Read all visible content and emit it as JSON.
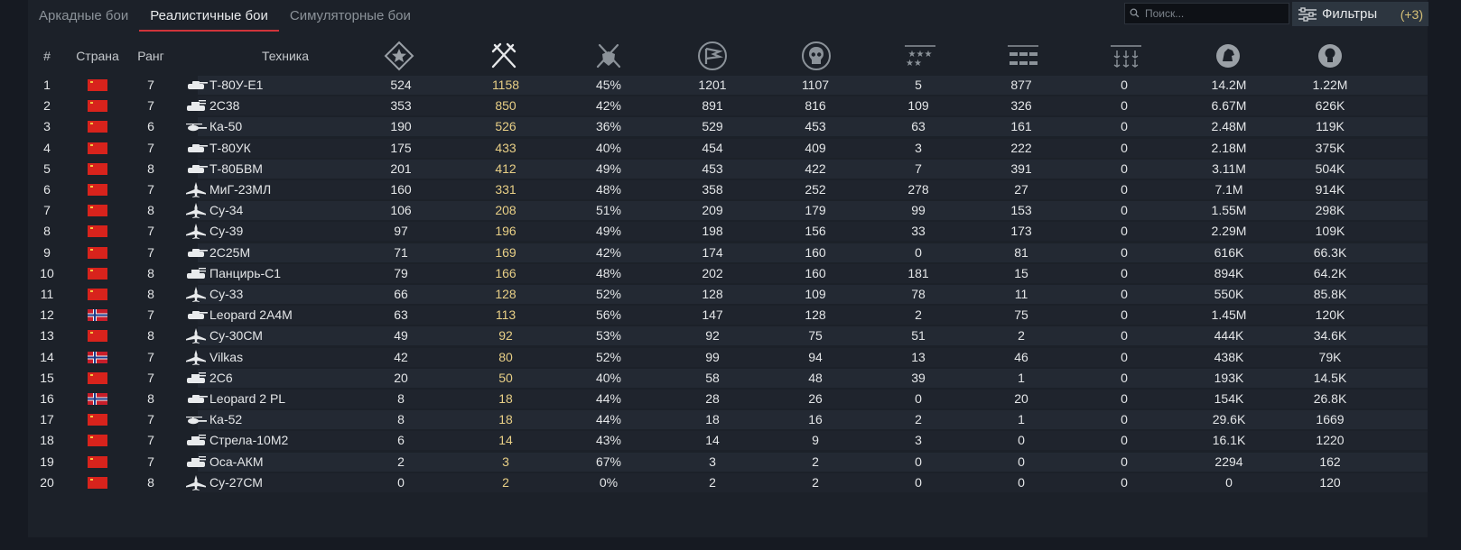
{
  "tabs": [
    {
      "label": "Аркадные бои",
      "active": false
    },
    {
      "label": "Реалистичные бои",
      "active": true
    },
    {
      "label": "Симуляторные бои",
      "active": false
    }
  ],
  "search": {
    "placeholder": "Поиск..."
  },
  "filters": {
    "label": "Фильтры",
    "count": "(+3)"
  },
  "table": {
    "columns": {
      "num": "#",
      "country": "Страна",
      "rank": "Ранг",
      "vehicle": "Техника",
      "icon_columns": [
        "tiers-icon",
        "battles-icon",
        "win-rate-icon",
        "respawns-icon",
        "deaths-icon",
        "air-kills-icon",
        "ground-kills-icon",
        "naval-kills-icon",
        "silver-lions-icon",
        "research-points-icon"
      ]
    },
    "rows": [
      {
        "num": "1",
        "flag": "ussr",
        "rank": "7",
        "type": "tank",
        "name": "Т-80У-Е1",
        "v1": "524",
        "battles": "1158",
        "winrate": "45%",
        "v4": "1201",
        "v5": "1107",
        "v6": "5",
        "v7": "877",
        "v8": "0",
        "v9": "14.2M",
        "v10": "1.22M"
      },
      {
        "num": "2",
        "flag": "ussr",
        "rank": "7",
        "type": "spaa",
        "name": "2С38",
        "v1": "353",
        "battles": "850",
        "winrate": "42%",
        "v4": "891",
        "v5": "816",
        "v6": "109",
        "v7": "326",
        "v8": "0",
        "v9": "6.67M",
        "v10": "626K"
      },
      {
        "num": "3",
        "flag": "ussr",
        "rank": "6",
        "type": "heli",
        "name": "Ка-50",
        "v1": "190",
        "battles": "526",
        "winrate": "36%",
        "v4": "529",
        "v5": "453",
        "v6": "63",
        "v7": "161",
        "v8": "0",
        "v9": "2.48M",
        "v10": "119K"
      },
      {
        "num": "4",
        "flag": "ussr",
        "rank": "7",
        "type": "tank",
        "name": "Т-80УК",
        "v1": "175",
        "battles": "433",
        "winrate": "40%",
        "v4": "454",
        "v5": "409",
        "v6": "3",
        "v7": "222",
        "v8": "0",
        "v9": "2.18M",
        "v10": "375K"
      },
      {
        "num": "5",
        "flag": "ussr",
        "rank": "8",
        "type": "tank",
        "name": "Т-80БВМ",
        "v1": "201",
        "battles": "412",
        "winrate": "49%",
        "v4": "453",
        "v5": "422",
        "v6": "7",
        "v7": "391",
        "v8": "0",
        "v9": "3.11M",
        "v10": "504K"
      },
      {
        "num": "6",
        "flag": "ussr",
        "rank": "7",
        "type": "jet",
        "name": "МиГ-23МЛ",
        "v1": "160",
        "battles": "331",
        "winrate": "48%",
        "v4": "358",
        "v5": "252",
        "v6": "278",
        "v7": "27",
        "v8": "0",
        "v9": "7.1M",
        "v10": "914K"
      },
      {
        "num": "7",
        "flag": "ussr",
        "rank": "8",
        "type": "jet",
        "name": "Су-34",
        "v1": "106",
        "battles": "208",
        "winrate": "51%",
        "v4": "209",
        "v5": "179",
        "v6": "99",
        "v7": "153",
        "v8": "0",
        "v9": "1.55M",
        "v10": "298K"
      },
      {
        "num": "8",
        "flag": "ussr",
        "rank": "7",
        "type": "jet",
        "name": "Су-39",
        "v1": "97",
        "battles": "196",
        "winrate": "49%",
        "v4": "198",
        "v5": "156",
        "v6": "33",
        "v7": "173",
        "v8": "0",
        "v9": "2.29M",
        "v10": "109K"
      },
      {
        "num": "9",
        "flag": "ussr",
        "rank": "7",
        "type": "tank",
        "name": "2С25М",
        "v1": "71",
        "battles": "169",
        "winrate": "42%",
        "v4": "174",
        "v5": "160",
        "v6": "0",
        "v7": "81",
        "v8": "0",
        "v9": "616K",
        "v10": "66.3K"
      },
      {
        "num": "10",
        "flag": "ussr",
        "rank": "8",
        "type": "spaa",
        "name": "Панцирь-С1",
        "v1": "79",
        "battles": "166",
        "winrate": "48%",
        "v4": "202",
        "v5": "160",
        "v6": "181",
        "v7": "15",
        "v8": "0",
        "v9": "894K",
        "v10": "64.2K"
      },
      {
        "num": "11",
        "flag": "ussr",
        "rank": "8",
        "type": "jet",
        "name": "Су-33",
        "v1": "66",
        "battles": "128",
        "winrate": "52%",
        "v4": "128",
        "v5": "109",
        "v6": "78",
        "v7": "11",
        "v8": "0",
        "v9": "550K",
        "v10": "85.8K"
      },
      {
        "num": "12",
        "flag": "nordic",
        "rank": "7",
        "type": "tank",
        "name": "Leopard 2A4M",
        "v1": "63",
        "battles": "113",
        "winrate": "56%",
        "v4": "147",
        "v5": "128",
        "v6": "2",
        "v7": "75",
        "v8": "0",
        "v9": "1.45M",
        "v10": "120K"
      },
      {
        "num": "13",
        "flag": "ussr",
        "rank": "8",
        "type": "jet",
        "name": "Су-30СМ",
        "v1": "49",
        "battles": "92",
        "winrate": "53%",
        "v4": "92",
        "v5": "75",
        "v6": "51",
        "v7": "2",
        "v8": "0",
        "v9": "444K",
        "v10": "34.6K"
      },
      {
        "num": "14",
        "flag": "nordic",
        "rank": "7",
        "type": "jet",
        "name": "Vilkas",
        "v1": "42",
        "battles": "80",
        "winrate": "52%",
        "v4": "99",
        "v5": "94",
        "v6": "13",
        "v7": "46",
        "v8": "0",
        "v9": "438K",
        "v10": "79K"
      },
      {
        "num": "15",
        "flag": "ussr",
        "rank": "7",
        "type": "spaa",
        "name": "2С6",
        "v1": "20",
        "battles": "50",
        "winrate": "40%",
        "v4": "58",
        "v5": "48",
        "v6": "39",
        "v7": "1",
        "v8": "0",
        "v9": "193K",
        "v10": "14.5K"
      },
      {
        "num": "16",
        "flag": "nordic",
        "rank": "8",
        "type": "tank",
        "name": "Leopard 2 PL",
        "v1": "8",
        "battles": "18",
        "winrate": "44%",
        "v4": "28",
        "v5": "26",
        "v6": "0",
        "v7": "20",
        "v8": "0",
        "v9": "154K",
        "v10": "26.8K"
      },
      {
        "num": "17",
        "flag": "ussr",
        "rank": "7",
        "type": "heli",
        "name": "Ка-52",
        "v1": "8",
        "battles": "18",
        "winrate": "44%",
        "v4": "18",
        "v5": "16",
        "v6": "2",
        "v7": "1",
        "v8": "0",
        "v9": "29.6K",
        "v10": "1669"
      },
      {
        "num": "18",
        "flag": "ussr",
        "rank": "7",
        "type": "spaa",
        "name": "Стрела-10М2",
        "v1": "6",
        "battles": "14",
        "winrate": "43%",
        "v4": "14",
        "v5": "9",
        "v6": "3",
        "v7": "0",
        "v8": "0",
        "v9": "16.1K",
        "v10": "1220"
      },
      {
        "num": "19",
        "flag": "ussr",
        "rank": "7",
        "type": "spaa",
        "name": "Оса-АКМ",
        "v1": "2",
        "battles": "3",
        "winrate": "67%",
        "v4": "3",
        "v5": "2",
        "v6": "0",
        "v7": "0",
        "v8": "0",
        "v9": "2294",
        "v10": "162"
      },
      {
        "num": "20",
        "flag": "ussr",
        "rank": "8",
        "type": "jet",
        "name": "Су-27СМ",
        "v1": "0",
        "battles": "2",
        "winrate": "0%",
        "v4": "2",
        "v5": "2",
        "v6": "0",
        "v7": "0",
        "v8": "0",
        "v9": "0",
        "v10": "120"
      }
    ]
  },
  "colors": {
    "accent": "#d0343a",
    "battles_text": "#e8cf86",
    "filter_count": "#d5c077",
    "flag_ussr": "#d8231c"
  }
}
